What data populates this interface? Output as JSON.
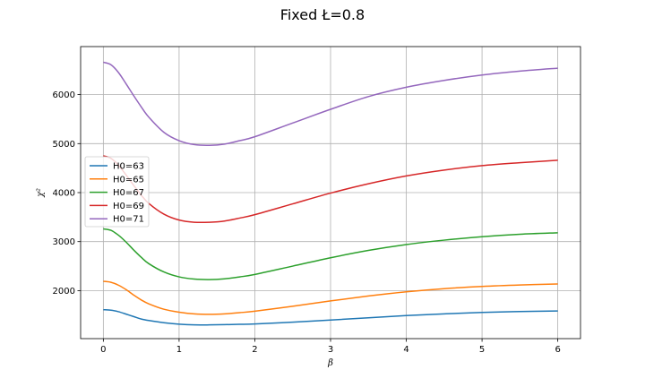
{
  "chart_data": {
    "type": "line",
    "title": "Fixed Ł=0.8",
    "xlabel": "β",
    "ylabel": "χ²",
    "xlim": [
      -0.3,
      6.3
    ],
    "ylim": [
      1020,
      6980
    ],
    "xticks": [
      0,
      1,
      2,
      3,
      4,
      5,
      6
    ],
    "yticks": [
      2000,
      3000,
      4000,
      5000,
      6000
    ],
    "grid": true,
    "legend_position": "center-left",
    "series": [
      {
        "name": "H0=63",
        "color": "#1f77b4",
        "x": [
          0,
          0.1,
          0.2,
          0.3,
          0.4,
          0.5,
          0.6,
          0.8,
          1.0,
          1.2,
          1.4,
          1.6,
          1.8,
          2.0,
          2.5,
          3.0,
          3.5,
          4.0,
          4.5,
          5.0,
          5.5,
          6.0
        ],
        "y": [
          1610,
          1600,
          1570,
          1520,
          1470,
          1420,
          1390,
          1345,
          1315,
          1300,
          1300,
          1305,
          1312,
          1320,
          1355,
          1400,
          1445,
          1490,
          1525,
          1555,
          1572,
          1585
        ]
      },
      {
        "name": "H0=65",
        "color": "#ff7f0e",
        "x": [
          0,
          0.1,
          0.2,
          0.3,
          0.4,
          0.5,
          0.6,
          0.8,
          1.0,
          1.2,
          1.4,
          1.6,
          1.8,
          2.0,
          2.5,
          3.0,
          3.5,
          4.0,
          4.5,
          5.0,
          5.5,
          6.0
        ],
        "y": [
          2190,
          2170,
          2110,
          2020,
          1910,
          1810,
          1730,
          1620,
          1560,
          1525,
          1515,
          1525,
          1550,
          1580,
          1680,
          1790,
          1890,
          1975,
          2040,
          2085,
          2115,
          2135
        ]
      },
      {
        "name": "H0=67",
        "color": "#2ca02c",
        "x": [
          0,
          0.1,
          0.2,
          0.3,
          0.4,
          0.5,
          0.6,
          0.8,
          1.0,
          1.2,
          1.4,
          1.6,
          1.8,
          2.0,
          2.5,
          3.0,
          3.5,
          4.0,
          4.5,
          5.0,
          5.5,
          6.0
        ],
        "y": [
          3260,
          3230,
          3130,
          2990,
          2830,
          2680,
          2550,
          2380,
          2280,
          2235,
          2225,
          2240,
          2280,
          2330,
          2500,
          2670,
          2820,
          2940,
          3030,
          3100,
          3150,
          3180
        ]
      },
      {
        "name": "H0=69",
        "color": "#d62728",
        "x": [
          0,
          0.1,
          0.2,
          0.3,
          0.4,
          0.5,
          0.6,
          0.8,
          1.0,
          1.2,
          1.4,
          1.6,
          1.8,
          2.0,
          2.5,
          3.0,
          3.5,
          4.0,
          4.5,
          5.0,
          5.5,
          6.0
        ],
        "y": [
          4750,
          4700,
          4560,
          4360,
          4150,
          3950,
          3780,
          3560,
          3440,
          3395,
          3395,
          3420,
          3480,
          3550,
          3770,
          3990,
          4180,
          4340,
          4460,
          4550,
          4610,
          4660
        ]
      },
      {
        "name": "H0=71",
        "color": "#9467bd",
        "x": [
          0,
          0.1,
          0.2,
          0.3,
          0.4,
          0.5,
          0.6,
          0.8,
          1.0,
          1.2,
          1.4,
          1.6,
          1.8,
          2.0,
          2.5,
          3.0,
          3.5,
          4.0,
          4.5,
          5.0,
          5.5,
          6.0
        ],
        "y": [
          6660,
          6610,
          6450,
          6220,
          5980,
          5750,
          5540,
          5230,
          5060,
          4980,
          4965,
          4990,
          5060,
          5140,
          5420,
          5700,
          5960,
          6150,
          6290,
          6400,
          6480,
          6540
        ]
      }
    ]
  }
}
